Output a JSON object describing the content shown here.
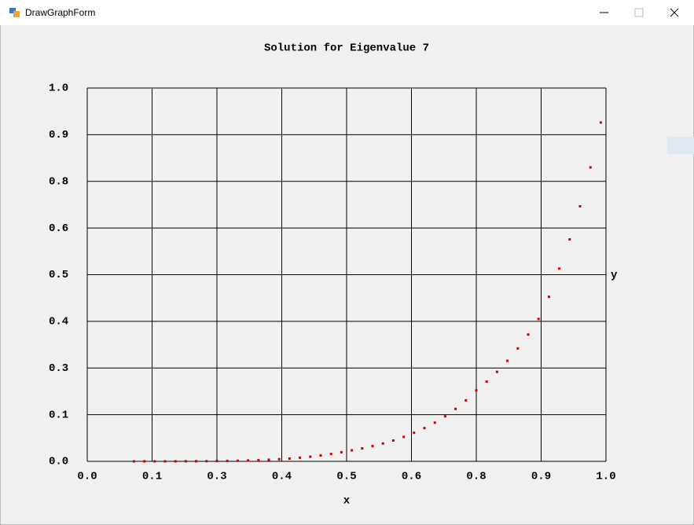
{
  "window": {
    "title": "DrawGraphForm"
  },
  "chart_data": {
    "type": "scatter",
    "title": "Solution for Eigenvalue 7",
    "x_label": "x",
    "y_label": "y",
    "x": [
      0.09,
      0.11,
      0.13,
      0.15,
      0.17,
      0.19,
      0.21,
      0.23,
      0.25,
      0.27,
      0.29,
      0.31,
      0.33,
      0.35,
      0.37,
      0.39,
      0.41,
      0.43,
      0.45,
      0.47,
      0.49,
      0.51,
      0.53,
      0.55,
      0.57,
      0.59,
      0.61,
      0.63,
      0.65,
      0.67,
      0.69,
      0.71,
      0.73,
      0.75,
      0.77,
      0.79,
      0.81,
      0.83,
      0.85,
      0.87,
      0.89,
      0.91,
      0.93,
      0.95,
      0.97,
      0.99
    ],
    "series": [
      {
        "color": "#cc0000",
        "values": [
          0.0,
          0.0,
          0.0,
          0.0001,
          0.0001,
          0.0002,
          0.0003,
          0.0005,
          0.0007,
          0.0011,
          0.0016,
          0.0023,
          0.0031,
          0.0043,
          0.0057,
          0.0074,
          0.0097,
          0.0124,
          0.0157,
          0.0197,
          0.0245,
          0.0296,
          0.0347,
          0.0408,
          0.0478,
          0.0558,
          0.0654,
          0.0765,
          0.0891,
          0.1037,
          0.1206,
          0.1404,
          0.1633,
          0.1901,
          0.2135,
          0.2398,
          0.2693,
          0.3024,
          0.3396,
          0.3814,
          0.4409,
          0.5163,
          0.5945,
          0.6832,
          0.7874,
          0.9076
        ]
      }
    ],
    "xlim": [
      0,
      1
    ],
    "ylim": [
      0,
      1
    ],
    "xticks": [
      {
        "value": 0,
        "label": "0.0"
      },
      {
        "value": 0.125,
        "label": "0.1"
      },
      {
        "value": 0.25,
        "label": "0.3"
      },
      {
        "value": 0.375,
        "label": "0.4"
      },
      {
        "value": 0.5,
        "label": "0.5"
      },
      {
        "value": 0.625,
        "label": "0.6"
      },
      {
        "value": 0.75,
        "label": "0.8"
      },
      {
        "value": 0.875,
        "label": "0.9"
      },
      {
        "value": 1,
        "label": "1.0"
      }
    ],
    "yticks": [
      {
        "value": 0,
        "label": "0.0"
      },
      {
        "value": 0.125,
        "label": "0.1"
      },
      {
        "value": 0.25,
        "label": "0.3"
      },
      {
        "value": 0.375,
        "label": "0.4"
      },
      {
        "value": 0.5,
        "label": "0.5"
      },
      {
        "value": 0.625,
        "label": "0.6"
      },
      {
        "value": 0.75,
        "label": "0.8"
      },
      {
        "value": 0.875,
        "label": "0.9"
      },
      {
        "value": 1,
        "label": "1.0"
      }
    ],
    "grid": true
  }
}
